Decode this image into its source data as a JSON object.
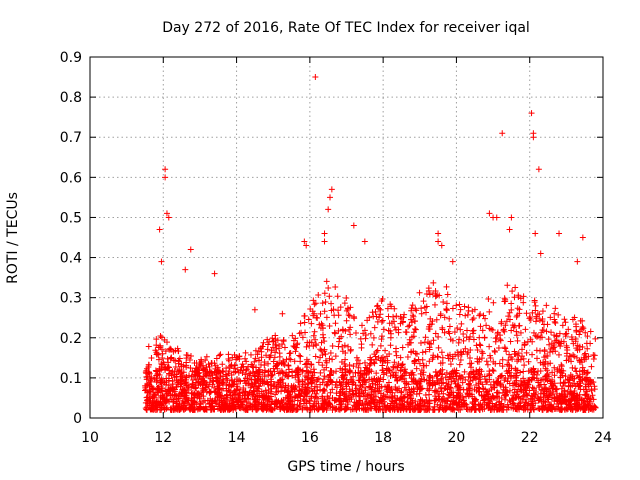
{
  "chart_data": {
    "type": "scatter",
    "title": "Day 272 of 2016, Rate Of TEC Index for receiver iqal",
    "xlabel": "GPS time / hours",
    "ylabel": "ROTI / TECUs",
    "xlim": [
      10,
      24
    ],
    "ylim": [
      0,
      0.9
    ],
    "xticks": [
      10,
      12,
      14,
      16,
      18,
      20,
      22,
      24
    ],
    "yticks": [
      0,
      0.1,
      0.2,
      0.3,
      0.4,
      0.5,
      0.6,
      0.7,
      0.8,
      0.9
    ],
    "grid": true,
    "marker": "+",
    "color": "#ff0000",
    "series": [
      {
        "name": "ROTI",
        "x_range": [
          11.5,
          23.8
        ],
        "baseline_envelope": [
          [
            11.5,
            0.23
          ],
          [
            12.0,
            0.2
          ],
          [
            12.5,
            0.17
          ],
          [
            13.0,
            0.15
          ],
          [
            13.5,
            0.16
          ],
          [
            14.0,
            0.16
          ],
          [
            14.5,
            0.17
          ],
          [
            15.0,
            0.21
          ],
          [
            15.5,
            0.21
          ],
          [
            16.0,
            0.3
          ],
          [
            16.5,
            0.36
          ],
          [
            17.0,
            0.3
          ],
          [
            17.5,
            0.24
          ],
          [
            18.0,
            0.3
          ],
          [
            18.5,
            0.26
          ],
          [
            19.0,
            0.32
          ],
          [
            19.5,
            0.35
          ],
          [
            20.0,
            0.3
          ],
          [
            20.5,
            0.27
          ],
          [
            21.0,
            0.31
          ],
          [
            21.5,
            0.34
          ],
          [
            22.0,
            0.3
          ],
          [
            22.5,
            0.28
          ],
          [
            23.0,
            0.27
          ],
          [
            23.5,
            0.24
          ],
          [
            23.8,
            0.22
          ]
        ],
        "notable_points": [
          [
            12.05,
            0.62
          ],
          [
            12.05,
            0.6
          ],
          [
            11.9,
            0.47
          ],
          [
            12.1,
            0.51
          ],
          [
            12.15,
            0.5
          ],
          [
            11.95,
            0.39
          ],
          [
            12.6,
            0.37
          ],
          [
            12.75,
            0.42
          ],
          [
            13.4,
            0.36
          ],
          [
            14.5,
            0.27
          ],
          [
            15.25,
            0.26
          ],
          [
            15.85,
            0.44
          ],
          [
            15.9,
            0.43
          ],
          [
            16.15,
            0.85
          ],
          [
            16.6,
            0.57
          ],
          [
            16.55,
            0.55
          ],
          [
            16.5,
            0.52
          ],
          [
            16.4,
            0.46
          ],
          [
            16.4,
            0.44
          ],
          [
            17.2,
            0.48
          ],
          [
            17.5,
            0.44
          ],
          [
            19.5,
            0.46
          ],
          [
            19.5,
            0.44
          ],
          [
            19.6,
            0.43
          ],
          [
            19.9,
            0.39
          ],
          [
            20.9,
            0.51
          ],
          [
            21.0,
            0.5
          ],
          [
            21.1,
            0.5
          ],
          [
            21.25,
            0.71
          ],
          [
            21.5,
            0.5
          ],
          [
            21.45,
            0.47
          ],
          [
            22.05,
            0.76
          ],
          [
            22.1,
            0.71
          ],
          [
            22.1,
            0.7
          ],
          [
            22.25,
            0.62
          ],
          [
            22.15,
            0.46
          ],
          [
            22.3,
            0.41
          ],
          [
            22.8,
            0.46
          ],
          [
            23.45,
            0.45
          ],
          [
            23.3,
            0.39
          ]
        ]
      }
    ]
  }
}
